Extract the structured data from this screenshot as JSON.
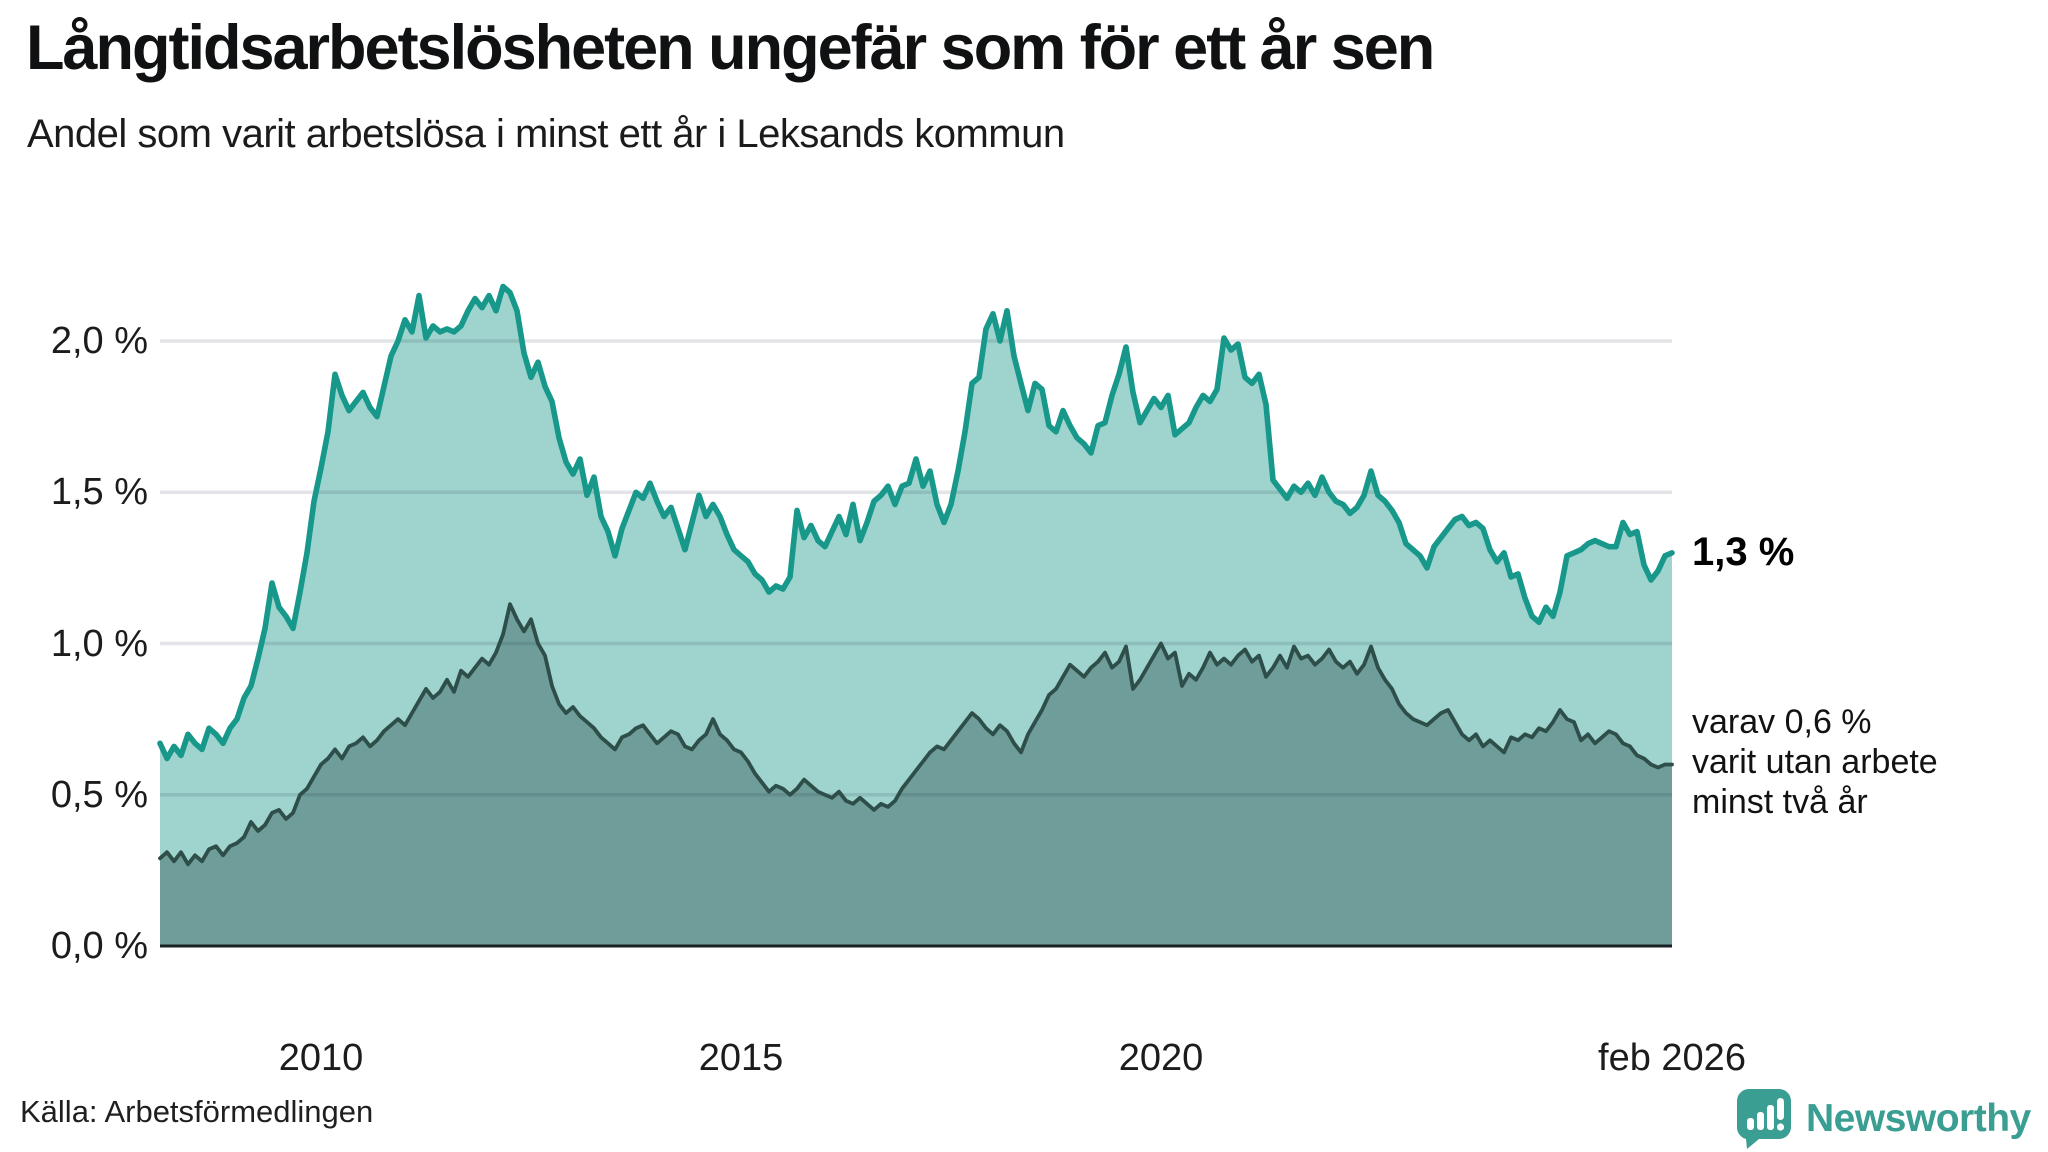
{
  "header": {
    "title": "Långtidsarbetslösheten ungefär som för ett år sen",
    "subtitle": "Andel som varit arbetslösa i minst ett år i Leksands kommun"
  },
  "annotations": {
    "latest_total": "1,3 %",
    "latest_two_year_lines": [
      "varav 0,6 %",
      "varit utan arbete",
      "minst två år"
    ]
  },
  "source": {
    "label": "Källa: Arbetsförmedlingen"
  },
  "branding": {
    "name": "Newsworthy",
    "logo_icon": "speech-bubble-bar-chart-icon"
  },
  "colors": {
    "total_line": "#17988b",
    "total_fill": "#9ed4cd",
    "two_year_line": "#2e4e49",
    "two_year_fill": "#6f9d99",
    "gridline": "rgba(40,45,80,0.13)",
    "zero_axis": "#1b2226",
    "text": "#1c1c1c",
    "brand_teal": "#3a9e93"
  },
  "chart_data": {
    "type": "area",
    "title": "Långtidsarbetslösheten ungefär som för ett år sen",
    "subtitle": "Andel som varit arbetslösa i minst ett år i Leksands kommun",
    "unit": "percent",
    "x_start": 2008.0833,
    "x_step": 0.0833333,
    "xlim": [
      2008.0833,
      2026.0833
    ],
    "ylim": [
      0,
      2.25
    ],
    "grid": true,
    "legend": "none (direct labels at line ends)",
    "x_ticks": [
      {
        "label": "2010",
        "year": 2010.0
      },
      {
        "label": "2015",
        "year": 2015.0
      },
      {
        "label": "2020",
        "year": 2020.0
      },
      {
        "label": "feb 2026",
        "year": 2026.0833
      }
    ],
    "y_ticks": [
      {
        "label": "0,0 %",
        "value": 0.0
      },
      {
        "label": "0,5 %",
        "value": 0.5
      },
      {
        "label": "1,0 %",
        "value": 1.0
      },
      {
        "label": "1,5 %",
        "value": 1.5
      },
      {
        "label": "2,0 %",
        "value": 2.0
      }
    ],
    "series": [
      {
        "name": "Andel arbetslösa minst ett år",
        "end_label": "1,3 %",
        "line_color": "#17988b",
        "fill_color": "#9ed4cd",
        "values": [
          0.67,
          0.62,
          0.66,
          0.63,
          0.7,
          0.67,
          0.65,
          0.72,
          0.7,
          0.67,
          0.72,
          0.75,
          0.82,
          0.86,
          0.95,
          1.05,
          1.2,
          1.12,
          1.09,
          1.05,
          1.17,
          1.3,
          1.47,
          1.58,
          1.7,
          1.89,
          1.82,
          1.77,
          1.8,
          1.83,
          1.78,
          1.75,
          1.85,
          1.95,
          2.0,
          2.07,
          2.03,
          2.15,
          2.01,
          2.05,
          2.03,
          2.04,
          2.03,
          2.05,
          2.1,
          2.14,
          2.11,
          2.15,
          2.1,
          2.18,
          2.16,
          2.1,
          1.96,
          1.88,
          1.93,
          1.85,
          1.8,
          1.68,
          1.6,
          1.56,
          1.61,
          1.49,
          1.55,
          1.42,
          1.37,
          1.29,
          1.38,
          1.44,
          1.5,
          1.48,
          1.53,
          1.47,
          1.42,
          1.45,
          1.38,
          1.31,
          1.4,
          1.49,
          1.42,
          1.46,
          1.42,
          1.36,
          1.31,
          1.29,
          1.27,
          1.23,
          1.21,
          1.17,
          1.19,
          1.18,
          1.22,
          1.44,
          1.35,
          1.39,
          1.34,
          1.32,
          1.37,
          1.42,
          1.36,
          1.46,
          1.34,
          1.4,
          1.47,
          1.49,
          1.52,
          1.46,
          1.52,
          1.53,
          1.61,
          1.52,
          1.57,
          1.46,
          1.4,
          1.46,
          1.57,
          1.7,
          1.86,
          1.88,
          2.04,
          2.09,
          2.0,
          2.1,
          1.95,
          1.86,
          1.77,
          1.86,
          1.84,
          1.72,
          1.7,
          1.77,
          1.72,
          1.68,
          1.66,
          1.63,
          1.72,
          1.73,
          1.82,
          1.89,
          1.98,
          1.83,
          1.73,
          1.77,
          1.81,
          1.78,
          1.82,
          1.69,
          1.71,
          1.73,
          1.78,
          1.82,
          1.8,
          1.84,
          2.01,
          1.97,
          1.99,
          1.88,
          1.86,
          1.89,
          1.79,
          1.54,
          1.51,
          1.48,
          1.52,
          1.5,
          1.53,
          1.49,
          1.55,
          1.5,
          1.47,
          1.46,
          1.43,
          1.45,
          1.49,
          1.57,
          1.49,
          1.47,
          1.44,
          1.4,
          1.33,
          1.31,
          1.29,
          1.25,
          1.32,
          1.35,
          1.38,
          1.41,
          1.42,
          1.39,
          1.4,
          1.38,
          1.31,
          1.27,
          1.3,
          1.22,
          1.23,
          1.15,
          1.09,
          1.07,
          1.12,
          1.09,
          1.17,
          1.29,
          1.3,
          1.31,
          1.33,
          1.34,
          1.33,
          1.32,
          1.32,
          1.4,
          1.36,
          1.37,
          1.26,
          1.21,
          1.24,
          1.29,
          1.3
        ]
      },
      {
        "name": "varav utan arbete minst två år",
        "end_label": "varav 0,6 % varit utan arbete minst två år",
        "line_color": "#2e4e49",
        "fill_color": "#6f9d99",
        "values": [
          0.29,
          0.31,
          0.28,
          0.31,
          0.27,
          0.3,
          0.28,
          0.32,
          0.33,
          0.3,
          0.33,
          0.34,
          0.36,
          0.41,
          0.38,
          0.4,
          0.44,
          0.45,
          0.42,
          0.44,
          0.5,
          0.52,
          0.56,
          0.6,
          0.62,
          0.65,
          0.62,
          0.66,
          0.67,
          0.69,
          0.66,
          0.68,
          0.71,
          0.73,
          0.75,
          0.73,
          0.77,
          0.81,
          0.85,
          0.82,
          0.84,
          0.88,
          0.84,
          0.91,
          0.89,
          0.92,
          0.95,
          0.93,
          0.97,
          1.03,
          1.13,
          1.08,
          1.04,
          1.08,
          1.0,
          0.96,
          0.86,
          0.8,
          0.77,
          0.79,
          0.76,
          0.74,
          0.72,
          0.69,
          0.67,
          0.65,
          0.69,
          0.7,
          0.72,
          0.73,
          0.7,
          0.67,
          0.69,
          0.71,
          0.7,
          0.66,
          0.65,
          0.68,
          0.7,
          0.75,
          0.7,
          0.68,
          0.65,
          0.64,
          0.61,
          0.57,
          0.54,
          0.51,
          0.53,
          0.52,
          0.5,
          0.52,
          0.55,
          0.53,
          0.51,
          0.5,
          0.49,
          0.51,
          0.48,
          0.47,
          0.49,
          0.47,
          0.45,
          0.47,
          0.46,
          0.48,
          0.52,
          0.55,
          0.58,
          0.61,
          0.64,
          0.66,
          0.65,
          0.68,
          0.71,
          0.74,
          0.77,
          0.75,
          0.72,
          0.7,
          0.73,
          0.71,
          0.67,
          0.64,
          0.7,
          0.74,
          0.78,
          0.83,
          0.85,
          0.89,
          0.93,
          0.91,
          0.89,
          0.92,
          0.94,
          0.97,
          0.92,
          0.94,
          0.99,
          0.85,
          0.88,
          0.92,
          0.96,
          1.0,
          0.95,
          0.97,
          0.86,
          0.9,
          0.88,
          0.92,
          0.97,
          0.93,
          0.95,
          0.93,
          0.96,
          0.98,
          0.94,
          0.96,
          0.89,
          0.92,
          0.96,
          0.92,
          0.99,
          0.95,
          0.96,
          0.93,
          0.95,
          0.98,
          0.94,
          0.92,
          0.94,
          0.9,
          0.93,
          0.99,
          0.92,
          0.88,
          0.85,
          0.8,
          0.77,
          0.75,
          0.74,
          0.73,
          0.75,
          0.77,
          0.78,
          0.74,
          0.7,
          0.68,
          0.7,
          0.66,
          0.68,
          0.66,
          0.64,
          0.69,
          0.68,
          0.7,
          0.69,
          0.72,
          0.71,
          0.74,
          0.78,
          0.75,
          0.74,
          0.68,
          0.7,
          0.67,
          0.69,
          0.71,
          0.7,
          0.67,
          0.66,
          0.63,
          0.62,
          0.6,
          0.59,
          0.6,
          0.6
        ]
      }
    ]
  }
}
